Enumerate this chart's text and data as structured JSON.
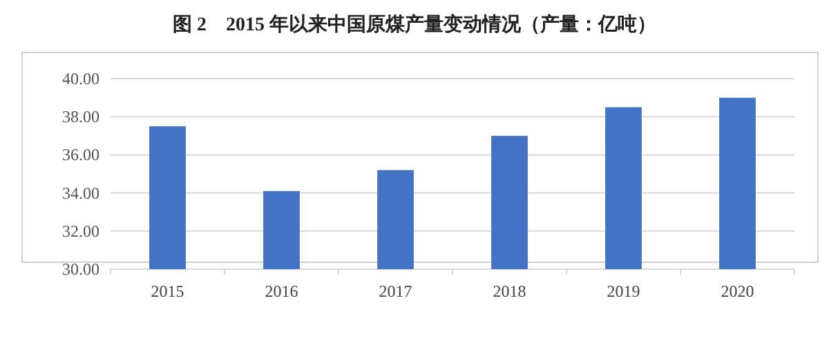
{
  "chart_data": {
    "type": "bar",
    "title": "图 2　2015 年以来中国原煤产量变动情况（产量：亿吨）",
    "categories": [
      "2015",
      "2016",
      "2017",
      "2018",
      "2019",
      "2020"
    ],
    "values": [
      37.5,
      34.1,
      35.2,
      37.0,
      38.5,
      39.0
    ],
    "color": "#4472c4",
    "ylim": [
      30,
      40
    ],
    "yticks": [
      {
        "value": 30,
        "label": "30.00"
      },
      {
        "value": 32,
        "label": "32.00"
      },
      {
        "value": 34,
        "label": "34.00"
      },
      {
        "value": 36,
        "label": "36.00"
      },
      {
        "value": 38,
        "label": "38.00"
      },
      {
        "value": 40,
        "label": "40.00"
      }
    ],
    "grid": "y"
  }
}
